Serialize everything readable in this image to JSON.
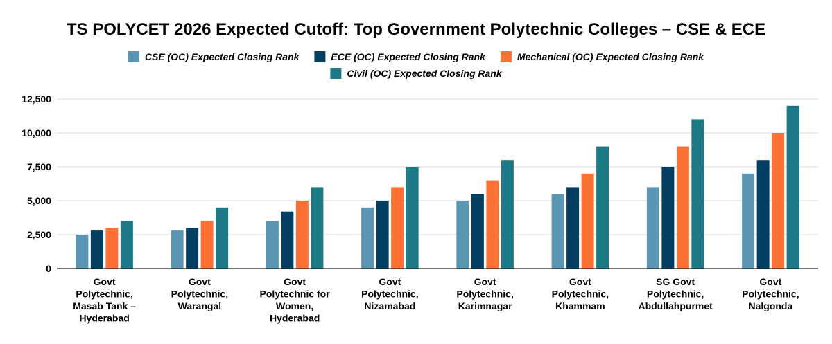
{
  "chart_data": {
    "type": "bar",
    "title": "TS POLYCET 2026 Expected Cutoff: Top Government Polytechnic Colleges – CSE & ECE",
    "xlabel": "",
    "ylabel": "",
    "ylim": [
      0,
      12500
    ],
    "yticks": [
      "0",
      "2,500",
      "5,000",
      "7,500",
      "10,000",
      "12,500"
    ],
    "ytick_values": [
      0,
      2500,
      5000,
      7500,
      10000,
      12500
    ],
    "grid": true,
    "legend_position": "top",
    "categories": [
      [
        "Govt",
        "Polytechnic,",
        "Masab Tank –",
        "Hyderabad"
      ],
      [
        "Govt",
        "Polytechnic,",
        "Warangal"
      ],
      [
        "Govt",
        "Polytechnic for",
        "Women,",
        "Hyderabad"
      ],
      [
        "Govt",
        "Polytechnic,",
        "Nizamabad"
      ],
      [
        "Govt",
        "Polytechnic,",
        "Karimnagar"
      ],
      [
        "Govt",
        "Polytechnic,",
        "Khammam"
      ],
      [
        "SG Govt",
        "Polytechnic,",
        "Abdullahpurmet"
      ],
      [
        "Govt",
        "Polytechnic,",
        "Nalgonda"
      ]
    ],
    "series": [
      {
        "name": "CSE (OC) Expected Closing Rank",
        "color": "#5b95b4",
        "values": [
          2500,
          2800,
          3500,
          4500,
          5000,
          5500,
          6000,
          7000
        ]
      },
      {
        "name": "ECE (OC) Expected Closing Rank",
        "color": "#033f63",
        "values": [
          2800,
          3000,
          4200,
          5000,
          5500,
          6000,
          7500,
          8000
        ]
      },
      {
        "name": "Mechanical (OC) Expected Closing Rank",
        "color": "#fe7134",
        "values": [
          3000,
          3500,
          5000,
          6000,
          6500,
          7000,
          9000,
          10000
        ]
      },
      {
        "name": "Civil (OC) Expected Closing Rank",
        "color": "#1c7985",
        "values": [
          3500,
          4500,
          6000,
          7500,
          8000,
          9000,
          11000,
          12000
        ]
      }
    ]
  }
}
